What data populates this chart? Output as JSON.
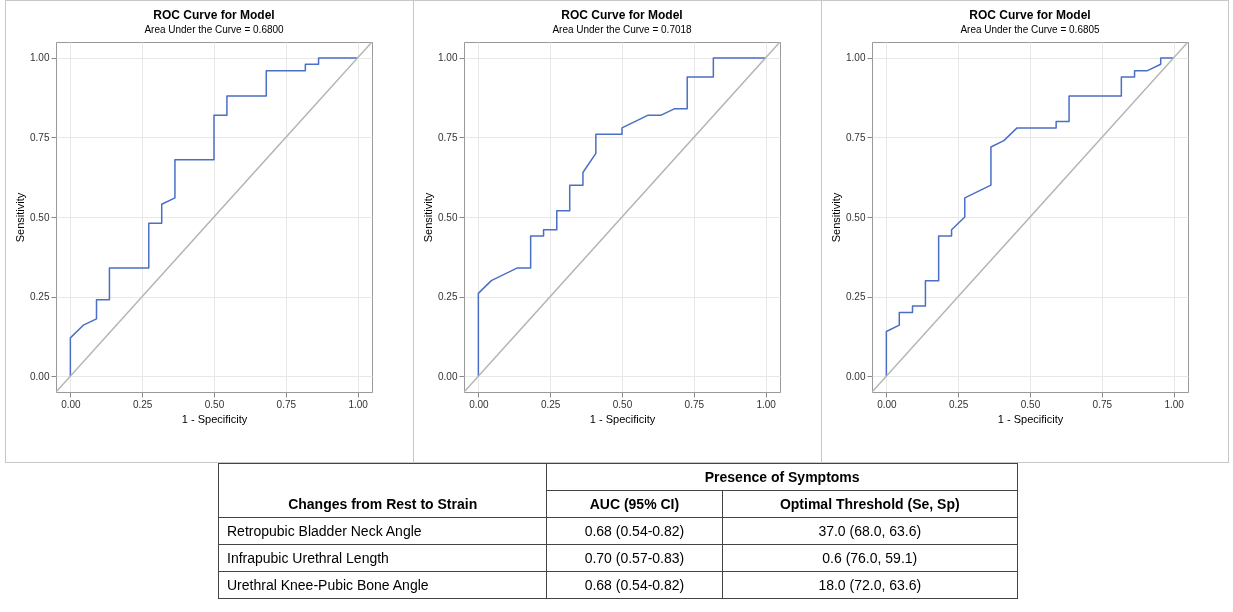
{
  "chart_data": [
    {
      "type": "line",
      "title": "ROC Curve for Model",
      "subtitle": "Area Under the Curve = 0.6800",
      "xlabel": "1 - Specificity",
      "ylabel": "Sensitivity",
      "xlim": [
        -0.05,
        1.05
      ],
      "ylim": [
        -0.05,
        1.05
      ],
      "xticks": [
        {
          "value": 0,
          "label": "0.00"
        },
        {
          "value": 0.25,
          "label": "0.25"
        },
        {
          "value": 0.5,
          "label": "0.50"
        },
        {
          "value": 0.75,
          "label": "0.75"
        },
        {
          "value": 1,
          "label": "1.00"
        }
      ],
      "yticks": [
        {
          "value": 0,
          "label": "0.00"
        },
        {
          "value": 0.25,
          "label": "0.25"
        },
        {
          "value": 0.5,
          "label": "0.50"
        },
        {
          "value": 0.75,
          "label": "0.75"
        },
        {
          "value": 1,
          "label": "1.00"
        }
      ],
      "grid": true,
      "series": [
        {
          "color": "#4a6fc4",
          "x": [
            0,
            0,
            0.045,
            0.091,
            0.091,
            0.136,
            0.136,
            0.273,
            0.273,
            0.318,
            0.318,
            0.364,
            0.364,
            0.5,
            0.5,
            0.545,
            0.545,
            0.682,
            0.682,
            0.818,
            0.818,
            0.864,
            0.864,
            1
          ],
          "values": [
            0,
            0.12,
            0.16,
            0.18,
            0.24,
            0.24,
            0.34,
            0.34,
            0.48,
            0.48,
            0.54,
            0.56,
            0.68,
            0.68,
            0.82,
            0.82,
            0.88,
            0.88,
            0.96,
            0.96,
            0.98,
            0.98,
            1,
            1
          ]
        },
        {
          "color": "#b4b4b4",
          "x": [
            -0.05,
            1.05
          ],
          "values": [
            -0.05,
            1.05
          ]
        }
      ]
    },
    {
      "type": "line",
      "title": "ROC Curve for Model",
      "subtitle": "Area Under the Curve = 0.7018",
      "xlabel": "1 - Specificity",
      "ylabel": "Sensitivity",
      "xlim": [
        -0.05,
        1.05
      ],
      "ylim": [
        -0.05,
        1.05
      ],
      "xticks": [
        {
          "value": 0,
          "label": "0.00"
        },
        {
          "value": 0.25,
          "label": "0.25"
        },
        {
          "value": 0.5,
          "label": "0.50"
        },
        {
          "value": 0.75,
          "label": "0.75"
        },
        {
          "value": 1,
          "label": "1.00"
        }
      ],
      "yticks": [
        {
          "value": 0,
          "label": "0.00"
        },
        {
          "value": 0.25,
          "label": "0.25"
        },
        {
          "value": 0.5,
          "label": "0.50"
        },
        {
          "value": 0.75,
          "label": "0.75"
        },
        {
          "value": 1,
          "label": "1.00"
        }
      ],
      "grid": true,
      "series": [
        {
          "color": "#4a6fc4",
          "x": [
            0,
            0,
            0.045,
            0.136,
            0.182,
            0.182,
            0.227,
            0.227,
            0.273,
            0.273,
            0.318,
            0.318,
            0.364,
            0.364,
            0.409,
            0.409,
            0.5,
            0.5,
            0.591,
            0.636,
            0.682,
            0.727,
            0.727,
            0.818,
            0.818,
            1
          ],
          "values": [
            0,
            0.26,
            0.3,
            0.34,
            0.34,
            0.44,
            0.44,
            0.46,
            0.46,
            0.52,
            0.52,
            0.6,
            0.6,
            0.64,
            0.7,
            0.76,
            0.76,
            0.78,
            0.82,
            0.82,
            0.84,
            0.84,
            0.94,
            0.94,
            1,
            1
          ]
        },
        {
          "color": "#b4b4b4",
          "x": [
            -0.05,
            1.05
          ],
          "values": [
            -0.05,
            1.05
          ]
        }
      ]
    },
    {
      "type": "line",
      "title": "ROC Curve for Model",
      "subtitle": "Area Under the Curve = 0.6805",
      "xlabel": "1 - Specificity",
      "ylabel": "Sensitivity",
      "xlim": [
        -0.05,
        1.05
      ],
      "ylim": [
        -0.05,
        1.05
      ],
      "xticks": [
        {
          "value": 0,
          "label": "0.00"
        },
        {
          "value": 0.25,
          "label": "0.25"
        },
        {
          "value": 0.5,
          "label": "0.50"
        },
        {
          "value": 0.75,
          "label": "0.75"
        },
        {
          "value": 1,
          "label": "1.00"
        }
      ],
      "yticks": [
        {
          "value": 0,
          "label": "0.00"
        },
        {
          "value": 0.25,
          "label": "0.25"
        },
        {
          "value": 0.5,
          "label": "0.50"
        },
        {
          "value": 0.75,
          "label": "0.75"
        },
        {
          "value": 1,
          "label": "1.00"
        }
      ],
      "grid": true,
      "series": [
        {
          "color": "#4a6fc4",
          "x": [
            0,
            0,
            0.045,
            0.045,
            0.091,
            0.091,
            0.136,
            0.136,
            0.182,
            0.182,
            0.227,
            0.227,
            0.273,
            0.273,
            0.364,
            0.364,
            0.409,
            0.455,
            0.591,
            0.591,
            0.636,
            0.636,
            0.818,
            0.818,
            0.864,
            0.864,
            0.909,
            0.955,
            0.955,
            1
          ],
          "values": [
            0,
            0.14,
            0.16,
            0.2,
            0.2,
            0.22,
            0.22,
            0.3,
            0.3,
            0.44,
            0.44,
            0.46,
            0.5,
            0.56,
            0.6,
            0.72,
            0.74,
            0.78,
            0.78,
            0.8,
            0.8,
            0.88,
            0.88,
            0.94,
            0.94,
            0.96,
            0.96,
            0.98,
            1,
            1
          ]
        },
        {
          "color": "#b4b4b4",
          "x": [
            -0.05,
            1.05
          ],
          "values": [
            -0.05,
            1.05
          ]
        }
      ]
    },
    {
      "type": "other",
      "annotations": [
        "Presence of Symptoms",
        "Changes from Rest to Strain",
        "AUC (95% CI)",
        "Optimal Threshold (Se, Sp)",
        "Retropubic Bladder Neck Angle",
        "0.68 (0.54-0.82)",
        "37.0 (68.0, 63.6)",
        "Infrapubic Urethral Length",
        "0.70 (0.57-0.83)",
        "0.6 (76.0, 59.1)",
        "Urethral Knee-Pubic Bone Angle",
        "0.68 (0.54-0.82)",
        "18.0 (72.0, 63.6)"
      ]
    }
  ]
}
